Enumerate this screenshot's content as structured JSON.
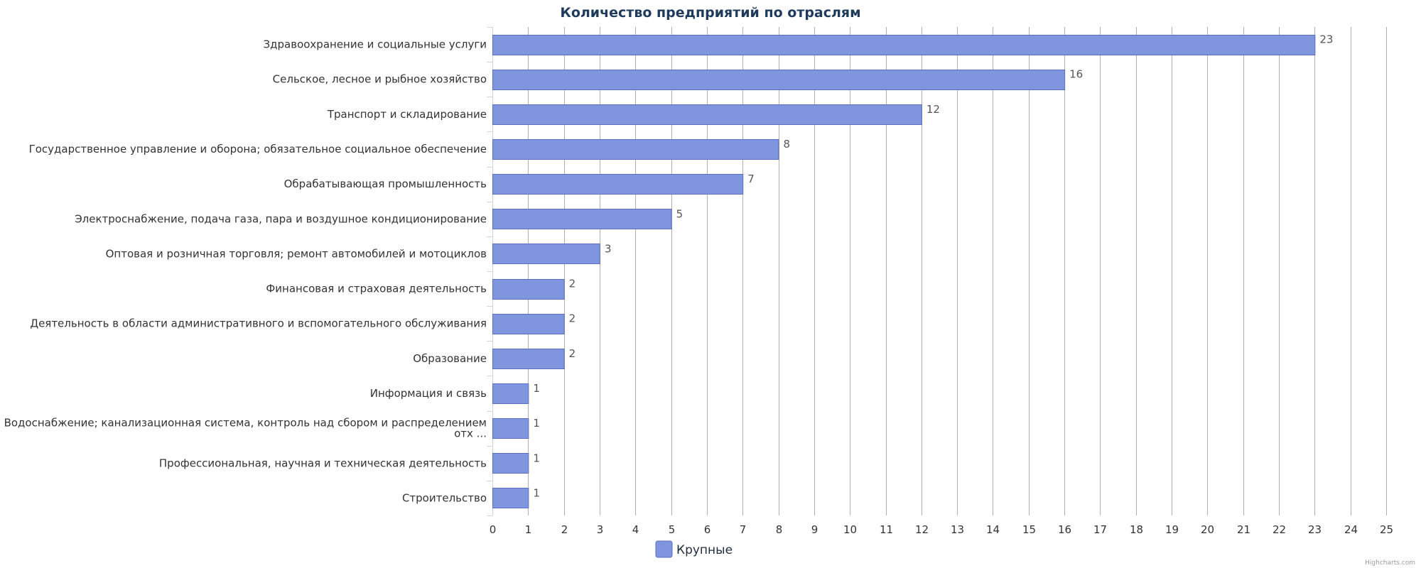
{
  "chart_data": {
    "type": "bar",
    "orientation": "horizontal",
    "title": "Количество предприятий по отраслям",
    "categories": [
      [
        "Здравоохранение и социальные услуги"
      ],
      [
        "Сельское, лесное и рыбное хозяйство"
      ],
      [
        "Транспорт и складирование"
      ],
      [
        "Государственное управление и оборона; обязательное социальное обеспечение"
      ],
      [
        "Обрабатывающая промышленность"
      ],
      [
        "Электроснабжение, подача газа, пара и воздушное кондиционирование"
      ],
      [
        "Оптовая и розничная торговля; ремонт автомобилей и мотоциклов"
      ],
      [
        "Финансовая и страховая деятельность"
      ],
      [
        "Деятельность в области административного и вспомогательного обслуживания"
      ],
      [
        "Образование"
      ],
      [
        "Информация и связь"
      ],
      [
        "Водоснабжение; канализационная система, контроль над сбором и распределением",
        "отх ..."
      ],
      [
        "Профессиональная, научная и техническая деятельность"
      ],
      [
        "Строительство"
      ]
    ],
    "series": [
      {
        "name": "Крупные",
        "color": "#7f95de",
        "values": [
          23,
          16,
          12,
          8,
          7,
          5,
          3,
          2,
          2,
          2,
          1,
          1,
          1,
          1
        ]
      }
    ],
    "xlim": [
      0,
      25
    ],
    "ticks": [
      0,
      1,
      2,
      3,
      4,
      5,
      6,
      7,
      8,
      9,
      10,
      11,
      12,
      13,
      14,
      15,
      16,
      17,
      18,
      19,
      20,
      21,
      22,
      23,
      24,
      25
    ],
    "grid": true,
    "data_labels": true,
    "legend": "bottom-center",
    "colors": {
      "bar_fill": "#7f95de",
      "bar_stroke": "#5a6fc2",
      "grid": "#b0b0b0",
      "title": "#1f3b5c"
    }
  },
  "credits": "Highcharts.com"
}
